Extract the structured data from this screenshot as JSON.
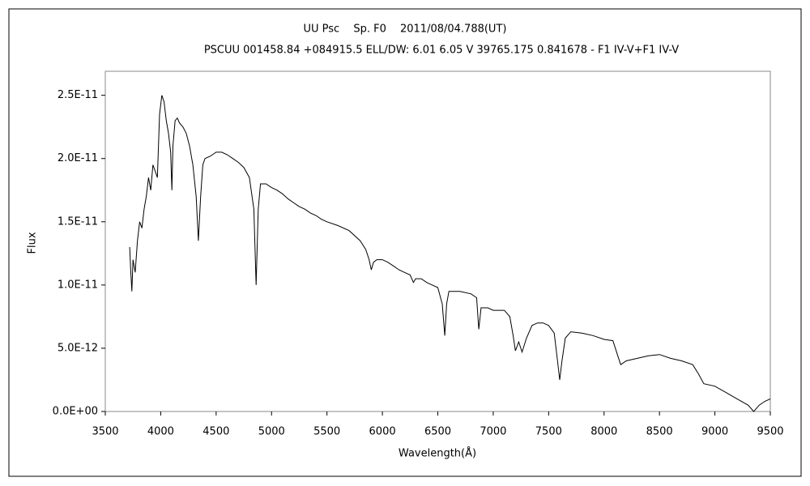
{
  "chart_data": {
    "type": "line",
    "title": "UU Psc　 Sp. F0　 2011/08/04.788(UT)",
    "subtitle": "PSCUU 001458.84 +084915.5 ELL/DW: 6.01 6.05 V 39765.175 0.841678 - F1 IV-V+F1 IV-V",
    "x_label": "Wavelength(Å)",
    "y_label": "Flux",
    "color": "#000000",
    "x": [
      3720,
      3730,
      3740,
      3750,
      3770,
      3790,
      3810,
      3830,
      3850,
      3870,
      3890,
      3910,
      3930,
      3950,
      3970,
      3990,
      4010,
      4030,
      4050,
      4070,
      4090,
      4101,
      4110,
      4130,
      4150,
      4170,
      4200,
      4230,
      4260,
      4290,
      4320,
      4340,
      4360,
      4380,
      4400,
      4450,
      4500,
      4550,
      4600,
      4650,
      4700,
      4750,
      4800,
      4840,
      4861,
      4880,
      4900,
      4950,
      5000,
      5050,
      5100,
      5150,
      5200,
      5250,
      5300,
      5350,
      5400,
      5450,
      5500,
      5600,
      5700,
      5800,
      5850,
      5880,
      5900,
      5920,
      5950,
      6000,
      6050,
      6100,
      6150,
      6200,
      6250,
      6280,
      6300,
      6350,
      6400,
      6450,
      6500,
      6540,
      6563,
      6580,
      6600,
      6700,
      6800,
      6850,
      6870,
      6890,
      6950,
      7000,
      7050,
      7100,
      7150,
      7180,
      7200,
      7230,
      7260,
      7300,
      7350,
      7400,
      7450,
      7500,
      7550,
      7580,
      7600,
      7620,
      7650,
      7700,
      7800,
      7900,
      8000,
      8080,
      8120,
      8150,
      8200,
      8300,
      8400,
      8500,
      8600,
      8700,
      8800,
      8850,
      8900,
      9000,
      9100,
      9200,
      9300,
      9350,
      9400,
      9450,
      9500
    ],
    "values": [
      1.3e-11,
      1.1e-11,
      9.5e-12,
      1.2e-11,
      1.1e-11,
      1.35e-11,
      1.5e-11,
      1.45e-11,
      1.6e-11,
      1.7e-11,
      1.85e-11,
      1.75e-11,
      1.95e-11,
      1.9e-11,
      1.85e-11,
      2.35e-11,
      2.5e-11,
      2.45e-11,
      2.3e-11,
      2.2e-11,
      2.05e-11,
      1.75e-11,
      2.1e-11,
      2.3e-11,
      2.32e-11,
      2.28e-11,
      2.25e-11,
      2.2e-11,
      2.1e-11,
      1.95e-11,
      1.7e-11,
      1.35e-11,
      1.7e-11,
      1.95e-11,
      2e-11,
      2.02e-11,
      2.05e-11,
      2.05e-11,
      2.03e-11,
      2e-11,
      1.97e-11,
      1.93e-11,
      1.85e-11,
      1.6e-11,
      1e-11,
      1.6e-11,
      1.8e-11,
      1.8e-11,
      1.77e-11,
      1.75e-11,
      1.72e-11,
      1.68e-11,
      1.65e-11,
      1.62e-11,
      1.6e-11,
      1.57e-11,
      1.55e-11,
      1.52e-11,
      1.5e-11,
      1.47e-11,
      1.43e-11,
      1.35e-11,
      1.28e-11,
      1.2e-11,
      1.12e-11,
      1.18e-11,
      1.2e-11,
      1.2e-11,
      1.18e-11,
      1.15e-11,
      1.12e-11,
      1.1e-11,
      1.08e-11,
      1.02e-11,
      1.05e-11,
      1.05e-11,
      1.02e-11,
      1e-11,
      9.8e-12,
      8.5e-12,
      6e-12,
      8.5e-12,
      9.5e-12,
      9.5e-12,
      9.3e-12,
      9e-12,
      6.5e-12,
      8.2e-12,
      8.2e-12,
      8e-12,
      8e-12,
      8e-12,
      7.5e-12,
      6e-12,
      4.8e-12,
      5.5e-12,
      4.7e-12,
      5.8e-12,
      6.8e-12,
      7e-12,
      7e-12,
      6.8e-12,
      6.2e-12,
      4e-12,
      2.5e-12,
      4e-12,
      5.8e-12,
      6.3e-12,
      6.2e-12,
      6e-12,
      5.7e-12,
      5.6e-12,
      4.5e-12,
      3.7e-12,
      4e-12,
      4.2e-12,
      4.4e-12,
      4.5e-12,
      4.2e-12,
      4e-12,
      3.7e-12,
      3e-12,
      2.2e-12,
      2e-12,
      1.5e-12,
      1e-12,
      5e-13,
      0.0,
      5e-13,
      8e-13,
      1e-12
    ],
    "xlim": [
      3500,
      9500
    ],
    "xticks": [
      3500,
      4000,
      4500,
      5000,
      5500,
      6000,
      6500,
      7000,
      7500,
      8000,
      8500,
      9000,
      9500
    ],
    "ylim": [
      0,
      2.69e-11
    ],
    "yticks": [
      {
        "value": 0,
        "label": "0.0E+00"
      },
      {
        "value": 5e-12,
        "label": "5.0E-12"
      },
      {
        "value": 1e-11,
        "label": "1.0E-11"
      },
      {
        "value": 1.5e-11,
        "label": "1.5E-11"
      },
      {
        "value": 2e-11,
        "label": "2.0E-11"
      },
      {
        "value": 2.5e-11,
        "label": "2.5E-11"
      }
    ],
    "grid": false
  }
}
